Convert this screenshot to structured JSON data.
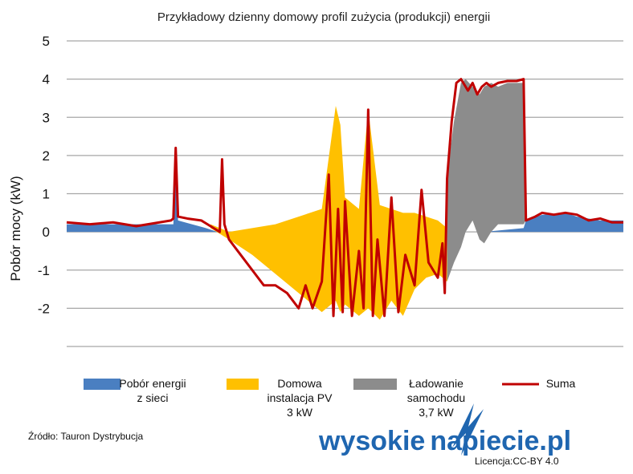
{
  "chart_data": {
    "type": "area",
    "title": "Przykładowy dzienny domowy profil zużycia (produkcji) energii",
    "ylabel": "Pobór mocy (kW)",
    "xlabel": "",
    "ylim": [
      -3,
      5
    ],
    "yticks": [
      "5",
      "4",
      "3",
      "2",
      "1",
      "0",
      "-1",
      "-2"
    ],
    "ytick_values": [
      5,
      4,
      3,
      2,
      1,
      0,
      -1,
      -2
    ],
    "xlim": [
      0,
      24
    ],
    "grid": true,
    "legend_position": "bottom",
    "series": [
      {
        "name": "Pobór energii z sieci",
        "legend_lines": [
          "Pobór energii",
          "z sieci"
        ],
        "color": "#4a7fc1",
        "kind": "area",
        "x": [
          0,
          3.0,
          4.6,
          4.7,
          4.8,
          5.4,
          6.0,
          6.5,
          7.0,
          18.0,
          19.7,
          19.8,
          20.5,
          21.5,
          22.0,
          23.0,
          24.0
        ],
        "y": [
          0.2,
          0.2,
          0.2,
          2.1,
          0.3,
          0.2,
          0.1,
          0.0,
          0.0,
          0.0,
          0.1,
          0.3,
          0.45,
          0.5,
          0.4,
          0.3,
          0.3
        ]
      },
      {
        "name": "Domowa instalacja PV 3 kW",
        "legend_lines": [
          "Domowa",
          "instalacja PV",
          "3 kW"
        ],
        "color": "#ffc000",
        "kind": "band",
        "x": [
          6.2,
          7.0,
          8.0,
          9.0,
          10.0,
          11.0,
          11.6,
          11.8,
          12.0,
          12.6,
          13.0,
          13.5,
          14.0,
          14.5,
          15.0,
          15.5,
          16.0,
          16.4
        ],
        "top": [
          0.2,
          0.0,
          0.1,
          0.2,
          0.4,
          0.6,
          3.3,
          2.8,
          0.9,
          0.6,
          3.2,
          0.7,
          0.6,
          0.5,
          0.5,
          0.4,
          0.3,
          0.1
        ],
        "bottom": [
          0.1,
          -0.2,
          -0.6,
          -1.1,
          -1.6,
          -2.1,
          -1.8,
          -2.1,
          -1.9,
          -2.2,
          -2.0,
          -2.3,
          -1.8,
          -2.2,
          -1.5,
          -1.2,
          -1.1,
          -1.3
        ]
      },
      {
        "name": "Ładowanie samochodu 3,7 kW",
        "legend_lines": [
          "Ładowanie",
          "samochodu",
          "3,7 kW"
        ],
        "color": "#8c8c8c",
        "kind": "band",
        "x": [
          16.4,
          16.7,
          17.0,
          17.2,
          17.5,
          17.8,
          18.0,
          18.3,
          18.6,
          19.0,
          19.7,
          19.8
        ],
        "top": [
          1.5,
          2.9,
          3.9,
          4.0,
          3.8,
          3.6,
          3.8,
          3.9,
          3.8,
          3.9,
          3.9,
          0.3
        ],
        "bottom": [
          -1.3,
          -0.8,
          -0.4,
          0.0,
          0.3,
          -0.2,
          -0.3,
          0.0,
          0.2,
          0.2,
          0.2,
          0.3
        ]
      },
      {
        "name": "Suma",
        "legend_lines": [
          "Suma"
        ],
        "color": "#c00000",
        "kind": "line",
        "x": [
          0,
          1.0,
          2.0,
          3.0,
          4.5,
          4.6,
          4.7,
          4.8,
          5.2,
          5.8,
          6.6,
          6.7,
          6.8,
          7.0,
          7.5,
          8.0,
          8.5,
          9.0,
          9.5,
          10.0,
          10.3,
          10.6,
          11.0,
          11.3,
          11.5,
          11.7,
          11.9,
          12.0,
          12.3,
          12.6,
          12.8,
          13.0,
          13.2,
          13.4,
          13.7,
          14.0,
          14.3,
          14.6,
          15.0,
          15.3,
          15.6,
          16.0,
          16.2,
          16.3,
          16.4,
          16.6,
          16.8,
          17.0,
          17.1,
          17.3,
          17.5,
          17.7,
          17.9,
          18.1,
          18.3,
          18.6,
          19.0,
          19.4,
          19.7,
          19.8,
          20.2,
          20.5,
          21.0,
          21.5,
          22.0,
          22.5,
          23.0,
          23.5,
          24.0
        ],
        "y": [
          0.25,
          0.2,
          0.25,
          0.15,
          0.3,
          0.35,
          2.2,
          0.4,
          0.35,
          0.3,
          0.0,
          1.9,
          0.2,
          -0.2,
          -0.6,
          -1.0,
          -1.4,
          -1.4,
          -1.6,
          -2.0,
          -1.4,
          -2.0,
          -1.3,
          1.5,
          -2.2,
          0.6,
          -2.1,
          0.8,
          -2.2,
          -0.5,
          -2.0,
          3.2,
          -2.2,
          -0.2,
          -2.2,
          0.9,
          -2.1,
          -0.6,
          -1.4,
          1.1,
          -0.8,
          -1.2,
          -0.3,
          -1.6,
          1.4,
          2.9,
          3.9,
          4.0,
          3.9,
          3.7,
          3.9,
          3.6,
          3.8,
          3.9,
          3.8,
          3.9,
          3.95,
          3.95,
          4.0,
          0.3,
          0.4,
          0.5,
          0.45,
          0.5,
          0.45,
          0.3,
          0.35,
          0.25,
          0.25
        ]
      }
    ]
  },
  "source": "Źródło: Tauron Dystrybucja",
  "logo": {
    "part1": "wysokie",
    "part2": "napiecie.pl",
    "license": "Licencja:CC-BY 4.0"
  }
}
